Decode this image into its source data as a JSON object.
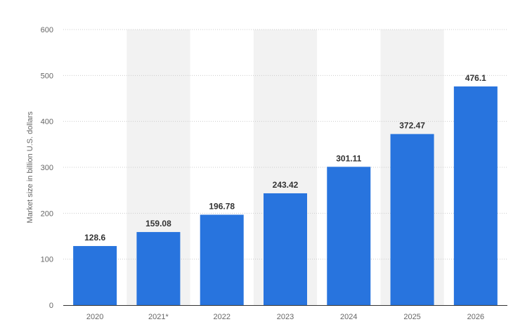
{
  "chart_data": {
    "type": "bar",
    "title": "",
    "xlabel": "",
    "ylabel": "Market size in billion U.S. dollars",
    "categories": [
      "2020",
      "2021*",
      "2022",
      "2023",
      "2024",
      "2025",
      "2026"
    ],
    "values": [
      128.6,
      159.08,
      196.78,
      243.42,
      301.11,
      372.47,
      476.1
    ],
    "value_labels": [
      "128.6",
      "159.08",
      "196.78",
      "243.42",
      "301.11",
      "372.47",
      "476.1"
    ],
    "yticks": [
      "0",
      "100",
      "200",
      "300",
      "400",
      "500",
      "600"
    ],
    "ylim": [
      0,
      600
    ],
    "grid": true,
    "legend": "none",
    "colors": {
      "bar": "#2874de",
      "band": "#f2f2f2",
      "grid": "#cccccc",
      "axis": "#333333"
    }
  }
}
